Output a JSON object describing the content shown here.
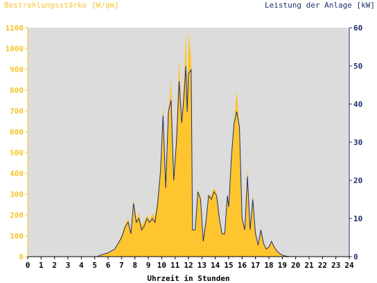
{
  "chart_data": {
    "type": "area",
    "title_left": "Bestrahlungsstärke [W/qm]",
    "title_right": "Leistung der Anlage [kW]",
    "xlabel": "Uhrzeit in Stunden",
    "xlim": [
      0,
      24
    ],
    "ylim_left": [
      0,
      1100
    ],
    "ylim_right": [
      0,
      60
    ],
    "grid": false,
    "colors": {
      "irradiance": "#fec52f",
      "power": "#1e2f6e",
      "plot_background": "#dcdcdc",
      "left_axis": "#f5c531",
      "right_axis": "#1e2f6e"
    },
    "x_ticks": [
      "0",
      "1",
      "2",
      "3",
      "4",
      "5",
      "6",
      "7",
      "8",
      "9",
      "10",
      "11",
      "12",
      "13",
      "14",
      "15",
      "16",
      "17",
      "18",
      "19",
      "20",
      "21",
      "22",
      "23",
      "24"
    ],
    "y_left_ticks": [
      "0",
      "100",
      "200",
      "300",
      "400",
      "500",
      "600",
      "700",
      "800",
      "900",
      "1000",
      "1100"
    ],
    "y_right_ticks": [
      "0",
      "10",
      "20",
      "30",
      "40",
      "50",
      "60"
    ],
    "series": [
      {
        "name": "Bestrahlungsstärke [W/qm]",
        "axis": "left",
        "points": [
          [
            0,
            0
          ],
          [
            5.2,
            0
          ],
          [
            5.5,
            8
          ],
          [
            6.0,
            18
          ],
          [
            6.5,
            35
          ],
          [
            7.0,
            100
          ],
          [
            7.3,
            160
          ],
          [
            7.5,
            185
          ],
          [
            7.7,
            120
          ],
          [
            7.9,
            280
          ],
          [
            8.1,
            180
          ],
          [
            8.3,
            210
          ],
          [
            8.5,
            150
          ],
          [
            8.7,
            170
          ],
          [
            8.9,
            200
          ],
          [
            9.1,
            175
          ],
          [
            9.3,
            210
          ],
          [
            9.5,
            190
          ],
          [
            9.7,
            280
          ],
          [
            9.9,
            420
          ],
          [
            10.1,
            730
          ],
          [
            10.3,
            340
          ],
          [
            10.5,
            700
          ],
          [
            10.7,
            850
          ],
          [
            10.9,
            380
          ],
          [
            11.1,
            600
          ],
          [
            11.3,
            950
          ],
          [
            11.5,
            650
          ],
          [
            11.7,
            900
          ],
          [
            11.8,
            1090
          ],
          [
            11.9,
            760
          ],
          [
            12.0,
            1080
          ],
          [
            12.2,
            950
          ],
          [
            12.3,
            130
          ],
          [
            12.5,
            130
          ],
          [
            12.7,
            320
          ],
          [
            12.9,
            290
          ],
          [
            13.1,
            100
          ],
          [
            13.3,
            170
          ],
          [
            13.5,
            300
          ],
          [
            13.7,
            290
          ],
          [
            13.9,
            330
          ],
          [
            14.1,
            310
          ],
          [
            14.3,
            200
          ],
          [
            14.5,
            110
          ],
          [
            14.7,
            120
          ],
          [
            14.9,
            300
          ],
          [
            15.0,
            250
          ],
          [
            15.2,
            500
          ],
          [
            15.4,
            640
          ],
          [
            15.6,
            800
          ],
          [
            15.8,
            620
          ],
          [
            16.0,
            200
          ],
          [
            16.2,
            130
          ],
          [
            16.4,
            430
          ],
          [
            16.6,
            130
          ],
          [
            16.8,
            300
          ],
          [
            17.0,
            120
          ],
          [
            17.2,
            60
          ],
          [
            17.4,
            140
          ],
          [
            17.6,
            70
          ],
          [
            17.8,
            40
          ],
          [
            18.0,
            50
          ],
          [
            18.2,
            75
          ],
          [
            18.4,
            50
          ],
          [
            18.6,
            30
          ],
          [
            18.8,
            15
          ],
          [
            19.0,
            8
          ],
          [
            19.3,
            3
          ],
          [
            19.6,
            0
          ],
          [
            24,
            0
          ]
        ]
      },
      {
        "name": "Leistung der Anlage [kW]",
        "axis": "right",
        "points": [
          [
            0,
            0
          ],
          [
            5.2,
            0
          ],
          [
            5.5,
            0.5
          ],
          [
            6.0,
            1
          ],
          [
            6.5,
            2
          ],
          [
            7.0,
            5
          ],
          [
            7.3,
            8
          ],
          [
            7.5,
            9
          ],
          [
            7.7,
            6
          ],
          [
            7.9,
            14
          ],
          [
            8.1,
            9
          ],
          [
            8.3,
            10
          ],
          [
            8.5,
            7
          ],
          [
            8.7,
            8
          ],
          [
            8.9,
            10
          ],
          [
            9.1,
            9
          ],
          [
            9.3,
            10
          ],
          [
            9.5,
            9
          ],
          [
            9.7,
            14
          ],
          [
            9.9,
            22
          ],
          [
            10.1,
            37
          ],
          [
            10.3,
            18
          ],
          [
            10.5,
            38
          ],
          [
            10.7,
            41
          ],
          [
            10.9,
            20
          ],
          [
            11.1,
            30
          ],
          [
            11.3,
            46
          ],
          [
            11.5,
            35
          ],
          [
            11.7,
            44
          ],
          [
            11.8,
            50
          ],
          [
            11.9,
            38
          ],
          [
            12.0,
            48
          ],
          [
            12.2,
            49
          ],
          [
            12.3,
            7
          ],
          [
            12.5,
            7
          ],
          [
            12.7,
            17
          ],
          [
            12.9,
            15
          ],
          [
            13.1,
            4
          ],
          [
            13.3,
            9
          ],
          [
            13.5,
            16
          ],
          [
            13.7,
            15
          ],
          [
            13.9,
            17
          ],
          [
            14.1,
            16
          ],
          [
            14.3,
            10
          ],
          [
            14.5,
            6
          ],
          [
            14.7,
            6
          ],
          [
            14.9,
            16
          ],
          [
            15.0,
            13
          ],
          [
            15.2,
            26
          ],
          [
            15.4,
            35
          ],
          [
            15.6,
            38
          ],
          [
            15.8,
            34
          ],
          [
            16.0,
            10
          ],
          [
            16.2,
            7
          ],
          [
            16.4,
            21
          ],
          [
            16.6,
            7
          ],
          [
            16.8,
            15
          ],
          [
            17.0,
            6
          ],
          [
            17.2,
            3
          ],
          [
            17.4,
            7
          ],
          [
            17.6,
            3.5
          ],
          [
            17.8,
            2
          ],
          [
            18.0,
            2.5
          ],
          [
            18.2,
            4
          ],
          [
            18.4,
            2.5
          ],
          [
            18.6,
            1.5
          ],
          [
            18.8,
            0.8
          ],
          [
            19.0,
            0.4
          ],
          [
            19.3,
            0.1
          ],
          [
            19.6,
            0
          ],
          [
            24,
            0
          ]
        ]
      }
    ]
  }
}
